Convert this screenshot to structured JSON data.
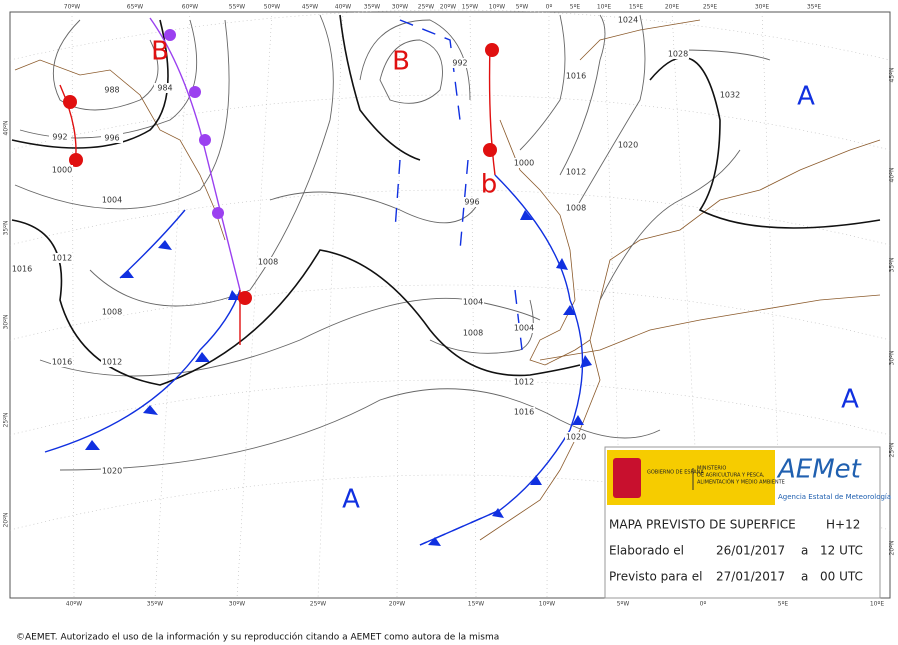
{
  "map": {
    "lon_labels_top": [
      "70ºW",
      "65ºW",
      "60ºW",
      "55ºW",
      "50ºW",
      "45ºW",
      "40ºW",
      "35ºW",
      "30ºW",
      "25ºW",
      "20ºW",
      "15ºW",
      "10ºW",
      "5ºW",
      "0º",
      "5ºE",
      "10ºE",
      "15ºE",
      "20ºE",
      "25ºE",
      "30ºE",
      "35ºE"
    ],
    "lon_labels_bottom": [
      "40ºW",
      "35ºW",
      "30ºW",
      "25ºW",
      "20ºW",
      "15ºW",
      "10ºW",
      "5ºW",
      "0º",
      "5ºE",
      "10ºE"
    ],
    "lat_labels_left": [
      "40ºN",
      "35ºN",
      "30ºN",
      "25ºN",
      "20ºN"
    ],
    "lat_labels_right": [
      "45ºN",
      "40ºN",
      "35ºN",
      "30ºN",
      "25ºN",
      "20ºN"
    ],
    "pressure_centers": [
      "B",
      "B",
      "b",
      "A",
      "A",
      "A"
    ],
    "isobar_labels": [
      988,
      984,
      992,
      996,
      1000,
      1004,
      1016,
      1012,
      1008,
      1008,
      1016,
      1012,
      1020,
      992,
      996,
      1004,
      1008,
      1004,
      1012,
      1016,
      1020,
      1000,
      1012,
      1008,
      1016,
      1020,
      1024,
      1028,
      1032
    ]
  },
  "info_box": {
    "gov": "GOBIERNO DE ESPAÑA",
    "ministry_1": "MINISTERIO",
    "ministry_2": "DE AGRICULTURA Y PESCA,",
    "ministry_3": "ALIMENTACIÓN Y MEDIO AMBIENTE",
    "logo": "AEMet",
    "agency": "Agencia Estatal de Meteorología",
    "title": "MAPA PREVISTO DE SUPERFICE",
    "range": "H+12",
    "made_label": "Elaborado el",
    "made_date": "26/01/2017",
    "made_at": "a",
    "made_time": "12 UTC",
    "valid_label": "Previsto para el",
    "valid_date": "27/01/2017",
    "valid_at": "a",
    "valid_time": "00 UTC"
  },
  "footer": "©AEMET. Autorizado el uso de la información y su reproducción citando a AEMET como autora de la misma"
}
